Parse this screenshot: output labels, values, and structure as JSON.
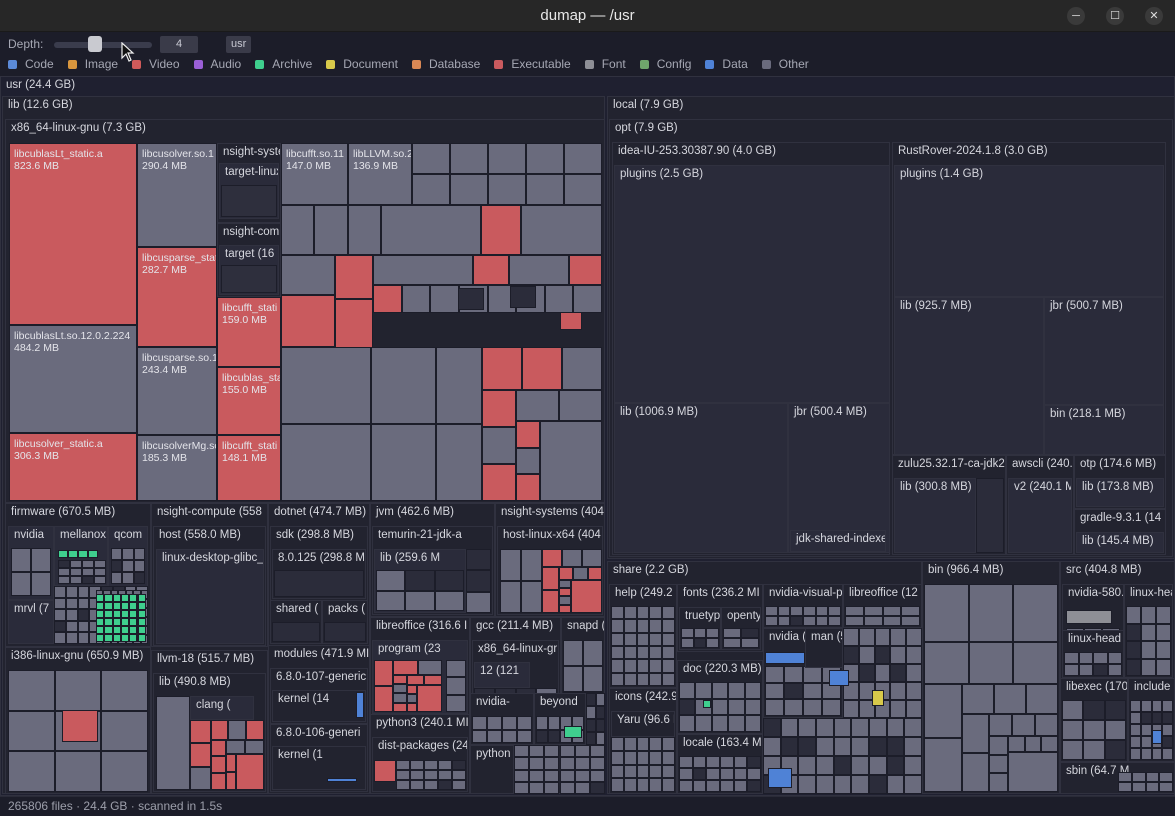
{
  "window": {
    "title": "dumap — /usr",
    "minimize": "─",
    "maximize": "☐",
    "close": "✕"
  },
  "toolbar": {
    "depth_label": "Depth:",
    "depth_value": "4",
    "depth_fraction": 0.55,
    "crumb": "usr"
  },
  "legend": [
    {
      "label": "Code",
      "color": "#5b8ad8"
    },
    {
      "label": "Image",
      "color": "#d8963e"
    },
    {
      "label": "Video",
      "color": "#d05a5a"
    },
    {
      "label": "Audio",
      "color": "#9a5fd6"
    },
    {
      "label": "Archive",
      "color": "#3fcf8e"
    },
    {
      "label": "Document",
      "color": "#d8c94a"
    },
    {
      "label": "Database",
      "color": "#d98855"
    },
    {
      "label": "Executable",
      "color": "#c95a5e"
    },
    {
      "label": "Font",
      "color": "#8e8f96"
    },
    {
      "label": "Config",
      "color": "#6fa56c"
    },
    {
      "label": "Data",
      "color": "#4f82d6"
    },
    {
      "label": "Other",
      "color": "#6a6b7d"
    }
  ],
  "root": {
    "label": "usr  (24.4 GB)"
  },
  "lib": {
    "label": "lib  (12.6 GB)"
  },
  "x86": {
    "label": "x86_64-linux-gnu  (7.3 GB)"
  },
  "files": {
    "cublas_static": "libcublasLt_static.a\n823.6 MB",
    "cublaslt_so": "libcublasLt.so.12.0.2.224\n484.2 MB",
    "cusolver_static": "libcusolver_static.a\n306.3 MB",
    "cusolver_so": "libcusolver.so.1\n290.4 MB",
    "cusparse_static": "libcusparse_stat\n282.7 MB",
    "cusparse_so": "libcusparse.so.1\n243.4 MB",
    "cusolvermg": "libcusolverMg.so\n185.3 MB",
    "nsight_syst": "nsight-syste",
    "target_linux": "target-linux",
    "nsight_comp": "nsight-comp",
    "target16": "target  (16",
    "cufft_static": "libcufft_stati\n159.0 MB",
    "cublas_sta": "libcublas_sta\n155.0 MB",
    "cufft_stati2": "libcufft_stati\n148.1 MB",
    "cufft_so": "libcufft.so.11\n147.0 MB",
    "llvm_so": "libLLVM.so.2\n136.9 MB"
  },
  "nodes": {
    "firmware": "firmware  (670.5 MB)",
    "nvidia": "nvidia",
    "mellanox": "mellanox",
    "qcom": "qcom",
    "mrvl": "mrvl  (7",
    "nsight_compute": "nsight-compute  (558",
    "host": "host  (558.0 MB)",
    "glibc": "linux-desktop-glibc_",
    "dotnet": "dotnet  (474.7 MB)",
    "sdk": "sdk  (298.8 MB)",
    "sdk8": "8.0.125  (298.8 M",
    "shared": "shared  (",
    "packs": "packs  (",
    "jvm": "jvm  (462.6 MB)",
    "temurin": "temurin-21-jdk-a",
    "temurin_lib": "lib  (259.6 M",
    "nsight_systems": "nsight-systems  (404",
    "hostx64": "host-linux-x64  (404",
    "i386": "i386-linux-gnu  (650.9 MB)",
    "llvm18": "llvm-18  (515.7 MB)",
    "llvm_lib": "lib  (490.8 MB)",
    "clang": "clang  (",
    "modules": "modules  (471.9 MI",
    "mod107": "6.8.0-107-generic",
    "kernel14": "kernel  (14",
    "mod106": "6.8.0-106-generi",
    "kernel1": "kernel  (1",
    "libreoffice_lib": "libreoffice  (316.6 I",
    "program": "program  (23",
    "gcc": "gcc  (211.4 MB)",
    "gcc_x86": "x86_64-linux-gr",
    "gcc12": "12  (121",
    "snapd": "snapd  (",
    "python3": "python3  (240.1 MI",
    "dist": "dist-packages  (24(",
    "nvidia_b": "nvidia-",
    "beyond": "beyond",
    "python": "python",
    "local": "local  (7.9 GB)",
    "opt": "opt  (7.9 GB)",
    "idea": "idea-IU-253.30387.90  (4.0 GB)",
    "idea_plugins": "plugins  (2.5 GB)",
    "idea_lib": "lib  (1006.9 MB)",
    "idea_jbr": "jbr  (500.4 MB)",
    "jdk_shared": "jdk-shared-indexe",
    "rustrover": "RustRover-2024.1.8  (3.0 GB)",
    "rr_plugins": "plugins  (1.4 GB)",
    "rr_lib": "lib  (925.7 MB)",
    "rr_jbr": "jbr  (500.7 MB)",
    "rr_bin": "bin  (218.1 MB)",
    "zulu": "zulu25.32.17-ca-jdk2",
    "zulu_lib": "lib  (300.8 MB)",
    "awscli": "awscli  (240.",
    "aws_v2": "v2  (240.1 M",
    "otp": "otp  (174.6 MB)",
    "otp_lib": "lib  (173.8 MB)",
    "gradle": "gradle-9.3.1  (14",
    "gradle_lib": "lib  (145.4 MB)",
    "share": "share  (2.2 GB)",
    "help": "help  (249.2",
    "fonts": "fonts  (236.2 MI",
    "truetype": "truetyp",
    "opentype": "openty",
    "nv_visual": "nvidia-visual-p",
    "share_libreoffice": "libreoffice  (12",
    "icons": "icons  (242.9",
    "doc": "doc  (220.3 MB)",
    "nvidia_s": "nvidia  (",
    "man": "man  (5",
    "yaru": "Yaru  (96.6 M",
    "locale": "locale  (163.4 M",
    "bin": "bin  (966.4 MB)",
    "src": "src  (404.8 MB)",
    "nv580": "nvidia-580.",
    "linux_hea": "linux-hea",
    "linux_head": "linux-head",
    "libexec": "libexec  (170",
    "include": "include",
    "sbin": "sbin  (64.7 M"
  },
  "status": {
    "files": "265806 files",
    "size": "24.4 GB",
    "scanned": "scanned in 1.5s"
  }
}
